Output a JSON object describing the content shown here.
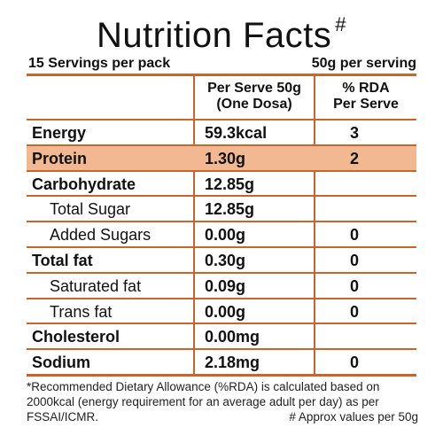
{
  "title": "Nutrition Facts",
  "title_mark": "#",
  "servings_text": "15 Servings per pack",
  "serving_size_text": "50g per serving",
  "header": {
    "per_serve": "Per Serve 50g",
    "per_serve_sub": "(One Dosa)",
    "rda": "% RDA",
    "rda_sub": "Per Serve"
  },
  "rows": [
    {
      "name": "Energy",
      "amount": "59.3kcal",
      "rda": "3",
      "indent": 0,
      "highlight": false
    },
    {
      "name": "Protein",
      "amount": "1.30g",
      "rda": "2",
      "indent": 0,
      "highlight": true
    },
    {
      "name": "Carbohydrate",
      "amount": "12.85g",
      "rda": "",
      "indent": 0,
      "highlight": false
    },
    {
      "name": "Total Sugar",
      "amount": "12.85g",
      "rda": "",
      "indent": 1,
      "highlight": false
    },
    {
      "name": "Added Sugars",
      "amount": "0.00g",
      "rda": "0",
      "indent": 1,
      "highlight": false
    },
    {
      "name": "Total fat",
      "amount": "0.30g",
      "rda": "0",
      "indent": 0,
      "highlight": false
    },
    {
      "name": "Saturated fat",
      "amount": "0.09g",
      "rda": "0",
      "indent": 1,
      "highlight": false
    },
    {
      "name": "Trans fat",
      "amount": "0.00g",
      "rda": "0",
      "indent": 1,
      "highlight": false
    },
    {
      "name": "Cholesterol",
      "amount": "0.00mg",
      "rda": "",
      "indent": 0,
      "highlight": false
    },
    {
      "name": "Sodium",
      "amount": "2.18mg",
      "rda": "0",
      "indent": 0,
      "highlight": false
    }
  ],
  "footnote": "*Recommended Dietary Allowance (%RDA) is calculated based on 2000kcal (energy requirement for an average adult per day) as per FSSAI/ICMR.",
  "approx_note": "# Approx values per 50g",
  "colors": {
    "rule": "#c7652f",
    "highlight": "#f1b892"
  }
}
